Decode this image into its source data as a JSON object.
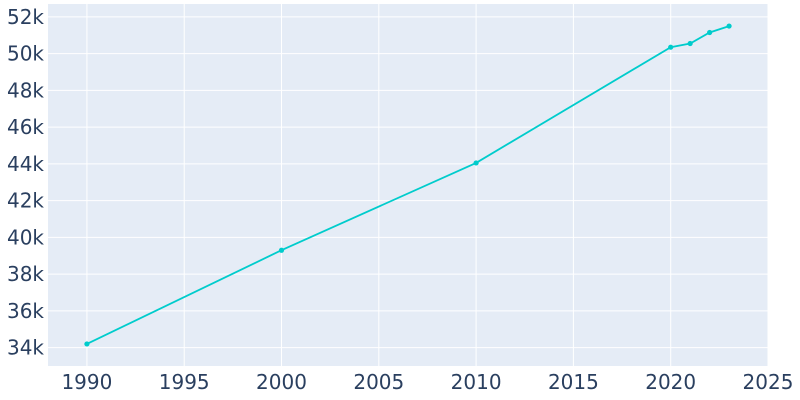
{
  "chart_data": {
    "type": "line",
    "title": "",
    "xlabel": "",
    "ylabel": "",
    "x": [
      1990,
      2000,
      2010,
      2020,
      2021,
      2022,
      2023
    ],
    "series": [
      {
        "values": [
          34200,
          39300,
          44050,
          50350,
          50550,
          51150,
          51500
        ]
      }
    ],
    "xlim": [
      1988,
      2025
    ],
    "ylim": [
      33000,
      52700
    ],
    "x_ticks": [
      1990,
      1995,
      2000,
      2005,
      2010,
      2015,
      2020,
      2025
    ],
    "x_tick_labels": [
      "1990",
      "1995",
      "2000",
      "2005",
      "2010",
      "2015",
      "2020",
      "2025"
    ],
    "y_ticks": [
      34000,
      36000,
      38000,
      40000,
      42000,
      44000,
      46000,
      48000,
      50000,
      52000
    ],
    "y_tick_labels": [
      "34k",
      "36k",
      "38k",
      "40k",
      "42k",
      "44k",
      "46k",
      "48k",
      "50k",
      "52k"
    ],
    "grid": true,
    "legend": "none",
    "colors": {
      "plot_background": "#e5ecf6",
      "grid": "#ffffff",
      "line": "#00cccc",
      "tick_text": "#2a3f5f"
    }
  }
}
